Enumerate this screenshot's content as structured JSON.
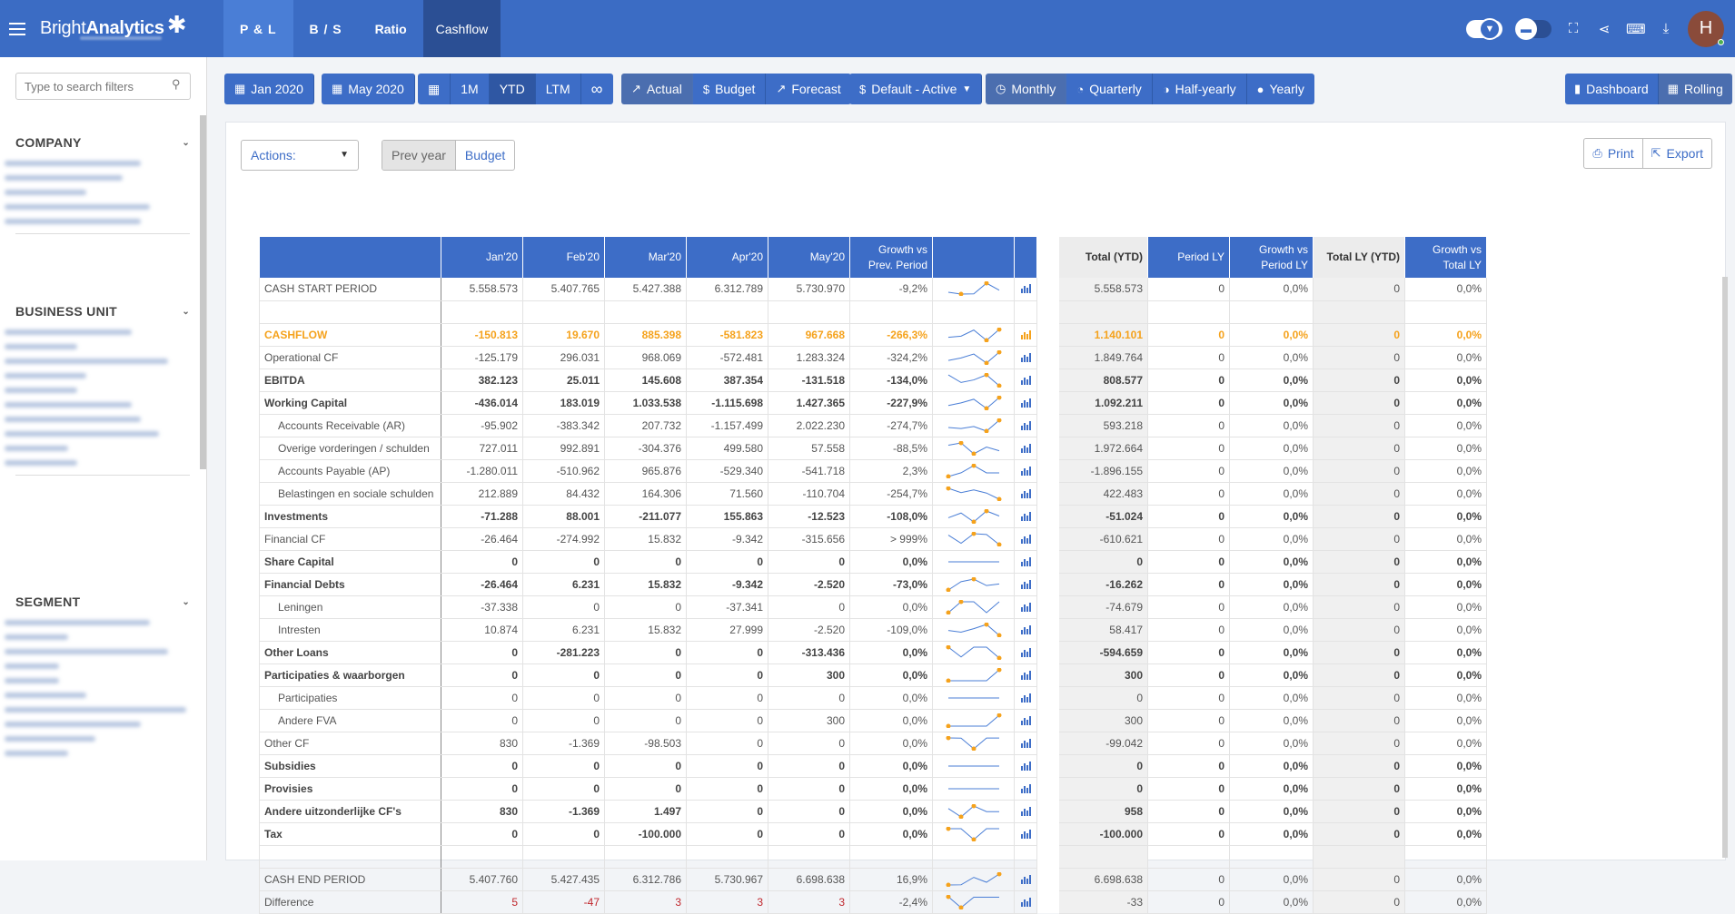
{
  "app": {
    "brand_light": "Bright",
    "brand_bold": "Analytics",
    "avatar_initial": "H"
  },
  "tabs": [
    "P & L",
    "B / S",
    "Ratio",
    "Cashflow"
  ],
  "sidebar": {
    "search_placeholder": "Type to search filters",
    "sections": [
      "COMPANY",
      "BUSINESS UNIT",
      "SEGMENT"
    ]
  },
  "toolbar": {
    "from": "Jan 2020",
    "to": "May 2020",
    "ranges": [
      "1M",
      "YTD",
      "LTM",
      "∞"
    ],
    "scenarios": [
      "Actual",
      "Budget",
      "Forecast"
    ],
    "version": "Default - Active",
    "periods": [
      "Monthly",
      "Quarterly",
      "Half-yearly",
      "Yearly"
    ],
    "views": [
      "Dashboard",
      "Rolling"
    ]
  },
  "panel": {
    "actions_label": "Actions:",
    "compare": [
      "Prev year",
      "Budget"
    ],
    "print": "Print",
    "export": "Export"
  },
  "table": {
    "headers": [
      "Jan'20",
      "Feb'20",
      "Mar'20",
      "Apr'20",
      "May'20",
      "Growth vs Prev. Period",
      "Total (YTD)",
      "Period LY",
      "Growth vs Period LY",
      "Total LY (YTD)",
      "Growth vs Total LY"
    ],
    "rows": [
      {
        "label": "CASH START PERIOD",
        "style": "n",
        "m": [
          "5.558.573",
          "5.407.765",
          "5.427.388",
          "6.312.789",
          "5.730.970"
        ],
        "growth": "-9,2%",
        "spark": [
          5.56,
          5.41,
          5.43,
          6.31,
          5.73
        ],
        "total": "5.558.573",
        "ply": "0",
        "gply": "0,0%",
        "tly": "0",
        "gtly": "0,0%"
      },
      {
        "label": "",
        "style": "blank"
      },
      {
        "label": "CASHFLOW",
        "style": "o",
        "m": [
          "-150.813",
          "19.670",
          "885.398",
          "-581.823",
          "967.668"
        ],
        "growth": "-266,3%",
        "spark": [
          -150,
          20,
          885,
          -582,
          968
        ],
        "total": "1.140.101",
        "ply": "0",
        "gply": "0,0%",
        "tly": "0",
        "gtly": "0,0%"
      },
      {
        "label": "Operational CF",
        "style": "n",
        "m": [
          "-125.179",
          "296.031",
          "968.069",
          "-572.481",
          "1.283.324"
        ],
        "growth": "-324,2%",
        "spark": [
          -125,
          296,
          968,
          -572,
          1283
        ],
        "total": "1.849.764",
        "ply": "0",
        "gply": "0,0%",
        "tly": "0",
        "gtly": "0,0%"
      },
      {
        "label": "EBITDA",
        "style": "b",
        "m": [
          "382.123",
          "25.011",
          "145.608",
          "387.354",
          "-131.518"
        ],
        "growth": "-134,0%",
        "spark": [
          382,
          25,
          146,
          387,
          -132
        ],
        "total": "808.577",
        "ply": "0",
        "gply": "0,0%",
        "tly": "0",
        "gtly": "0,0%"
      },
      {
        "label": "Working Capital",
        "style": "b",
        "m": [
          "-436.014",
          "183.019",
          "1.033.538",
          "-1.115.698",
          "1.427.365"
        ],
        "growth": "-227,9%",
        "spark": [
          -436,
          183,
          1034,
          -1116,
          1427
        ],
        "total": "1.092.211",
        "ply": "0",
        "gply": "0,0%",
        "tly": "0",
        "gtly": "0,0%"
      },
      {
        "label": "Accounts Receivable (AR)",
        "style": "i",
        "m": [
          "-95.902",
          "-383.342",
          "207.732",
          "-1.157.499",
          "2.022.230"
        ],
        "growth": "-274,7%",
        "spark": [
          -96,
          -383,
          208,
          -1157,
          2022
        ],
        "total": "593.218",
        "ply": "0",
        "gply": "0,0%",
        "tly": "0",
        "gtly": "0,0%"
      },
      {
        "label": "Overige vorderingen / schulden",
        "style": "i",
        "m": [
          "727.011",
          "992.891",
          "-304.376",
          "499.580",
          "57.558"
        ],
        "growth": "-88,5%",
        "spark": [
          727,
          993,
          -304,
          500,
          58
        ],
        "total": "1.972.664",
        "ply": "0",
        "gply": "0,0%",
        "tly": "0",
        "gtly": "0,0%"
      },
      {
        "label": "Accounts Payable (AP)",
        "style": "i",
        "m": [
          "-1.280.011",
          "-510.962",
          "965.876",
          "-529.340",
          "-541.718"
        ],
        "growth": "2,3%",
        "spark": [
          -1280,
          -511,
          966,
          -529,
          -542
        ],
        "total": "-1.896.155",
        "ply": "0",
        "gply": "0,0%",
        "tly": "0",
        "gtly": "0,0%"
      },
      {
        "label": "Belastingen en sociale schulden",
        "style": "i",
        "m": [
          "212.889",
          "84.432",
          "164.306",
          "71.560",
          "-110.704"
        ],
        "growth": "-254,7%",
        "spark": [
          213,
          84,
          164,
          72,
          -111
        ],
        "total": "422.483",
        "ply": "0",
        "gply": "0,0%",
        "tly": "0",
        "gtly": "0,0%"
      },
      {
        "label": "Investments",
        "style": "b",
        "m": [
          "-71.288",
          "88.001",
          "-211.077",
          "155.863",
          "-12.523"
        ],
        "growth": "-108,0%",
        "spark": [
          -71,
          88,
          -211,
          156,
          -13
        ],
        "total": "-51.024",
        "ply": "0",
        "gply": "0,0%",
        "tly": "0",
        "gtly": "0,0%"
      },
      {
        "label": "Financial CF",
        "style": "n",
        "m": [
          "-26.464",
          "-274.992",
          "15.832",
          "-9.342",
          "-315.656"
        ],
        "growth": "> 999%",
        "spark": [
          -26,
          -275,
          16,
          -9,
          -316
        ],
        "total": "-610.621",
        "ply": "0",
        "gply": "0,0%",
        "tly": "0",
        "gtly": "0,0%"
      },
      {
        "label": "Share Capital",
        "style": "b",
        "m": [
          "0",
          "0",
          "0",
          "0",
          "0"
        ],
        "growth": "0,0%",
        "spark": [
          0,
          0,
          0,
          0,
          0
        ],
        "total": "0",
        "ply": "0",
        "gply": "0,0%",
        "tly": "0",
        "gtly": "0,0%"
      },
      {
        "label": "Financial Debts",
        "style": "b",
        "m": [
          "-26.464",
          "6.231",
          "15.832",
          "-9.342",
          "-2.520"
        ],
        "growth": "-73,0%",
        "spark": [
          -26,
          6,
          16,
          -9,
          -3
        ],
        "total": "-16.262",
        "ply": "0",
        "gply": "0,0%",
        "tly": "0",
        "gtly": "0,0%"
      },
      {
        "label": "Leningen",
        "style": "i",
        "m": [
          "-37.338",
          "0",
          "0",
          "-37.341",
          "0"
        ],
        "growth": "0,0%",
        "spark": [
          -37,
          0,
          0,
          -37,
          0
        ],
        "total": "-74.679",
        "ply": "0",
        "gply": "0,0%",
        "tly": "0",
        "gtly": "0,0%"
      },
      {
        "label": "Intresten",
        "style": "i",
        "m": [
          "10.874",
          "6.231",
          "15.832",
          "27.999",
          "-2.520"
        ],
        "growth": "-109,0%",
        "spark": [
          11,
          6,
          16,
          28,
          -3
        ],
        "total": "58.417",
        "ply": "0",
        "gply": "0,0%",
        "tly": "0",
        "gtly": "0,0%"
      },
      {
        "label": "Other Loans",
        "style": "b",
        "m": [
          "0",
          "-281.223",
          "0",
          "0",
          "-313.436"
        ],
        "growth": "0,0%",
        "spark": [
          0,
          -281,
          0,
          0,
          -313
        ],
        "total": "-594.659",
        "ply": "0",
        "gply": "0,0%",
        "tly": "0",
        "gtly": "0,0%"
      },
      {
        "label": "Participaties & waarborgen",
        "style": "b",
        "m": [
          "0",
          "0",
          "0",
          "0",
          "300"
        ],
        "growth": "0,0%",
        "spark": [
          0,
          0,
          0,
          0,
          300
        ],
        "total": "300",
        "ply": "0",
        "gply": "0,0%",
        "tly": "0",
        "gtly": "0,0%"
      },
      {
        "label": "Participaties",
        "style": "i",
        "m": [
          "0",
          "0",
          "0",
          "0",
          "0"
        ],
        "growth": "0,0%",
        "spark": [
          0,
          0,
          0,
          0,
          0
        ],
        "total": "0",
        "ply": "0",
        "gply": "0,0%",
        "tly": "0",
        "gtly": "0,0%"
      },
      {
        "label": "Andere FVA",
        "style": "i",
        "m": [
          "0",
          "0",
          "0",
          "0",
          "300"
        ],
        "growth": "0,0%",
        "spark": [
          0,
          0,
          0,
          0,
          300
        ],
        "total": "300",
        "ply": "0",
        "gply": "0,0%",
        "tly": "0",
        "gtly": "0,0%"
      },
      {
        "label": "Other CF",
        "style": "n",
        "m": [
          "830",
          "-1.369",
          "-98.503",
          "0",
          "0"
        ],
        "growth": "0,0%",
        "spark": [
          830,
          -1369,
          -98503,
          0,
          0
        ],
        "total": "-99.042",
        "ply": "0",
        "gply": "0,0%",
        "tly": "0",
        "gtly": "0,0%"
      },
      {
        "label": "Subsidies",
        "style": "b",
        "m": [
          "0",
          "0",
          "0",
          "0",
          "0"
        ],
        "growth": "0,0%",
        "spark": [
          0,
          0,
          0,
          0,
          0
        ],
        "total": "0",
        "ply": "0",
        "gply": "0,0%",
        "tly": "0",
        "gtly": "0,0%"
      },
      {
        "label": "Provisies",
        "style": "b",
        "m": [
          "0",
          "0",
          "0",
          "0",
          "0"
        ],
        "growth": "0,0%",
        "spark": [
          0,
          0,
          0,
          0,
          0
        ],
        "total": "0",
        "ply": "0",
        "gply": "0,0%",
        "tly": "0",
        "gtly": "0,0%"
      },
      {
        "label": "Andere uitzonderlijke CF's",
        "style": "b",
        "m": [
          "830",
          "-1.369",
          "1.497",
          "0",
          "0"
        ],
        "growth": "0,0%",
        "spark": [
          830,
          -1369,
          1497,
          0,
          0
        ],
        "total": "958",
        "ply": "0",
        "gply": "0,0%",
        "tly": "0",
        "gtly": "0,0%"
      },
      {
        "label": "Tax",
        "style": "b",
        "m": [
          "0",
          "0",
          "-100.000",
          "0",
          "0"
        ],
        "growth": "0,0%",
        "spark": [
          0,
          0,
          -100000,
          0,
          0
        ],
        "total": "-100.000",
        "ply": "0",
        "gply": "0,0%",
        "tly": "0",
        "gtly": "0,0%"
      },
      {
        "label": "",
        "style": "blank"
      },
      {
        "label": "CASH END PERIOD",
        "style": "n",
        "m": [
          "5.407.760",
          "5.427.435",
          "6.312.786",
          "5.730.967",
          "6.698.638"
        ],
        "growth": "16,9%",
        "spark": [
          5.41,
          5.43,
          6.31,
          5.73,
          6.7
        ],
        "total": "6.698.638",
        "ply": "0",
        "gply": "0,0%",
        "tly": "0",
        "gtly": "0,0%"
      },
      {
        "label": "Difference",
        "style": "d",
        "m": [
          "5",
          "-47",
          "3",
          "3",
          "3"
        ],
        "growth": "-2,4%",
        "spark": [
          5,
          -47,
          3,
          3,
          3
        ],
        "total": "-33",
        "ply": "0",
        "gply": "0,0%",
        "tly": "0",
        "gtly": "0,0%"
      }
    ]
  },
  "colors": {
    "primary": "#3d6dc7",
    "topbar": "#3b6cc4",
    "accent": "#f5a21c",
    "negative": "#c0262c"
  }
}
